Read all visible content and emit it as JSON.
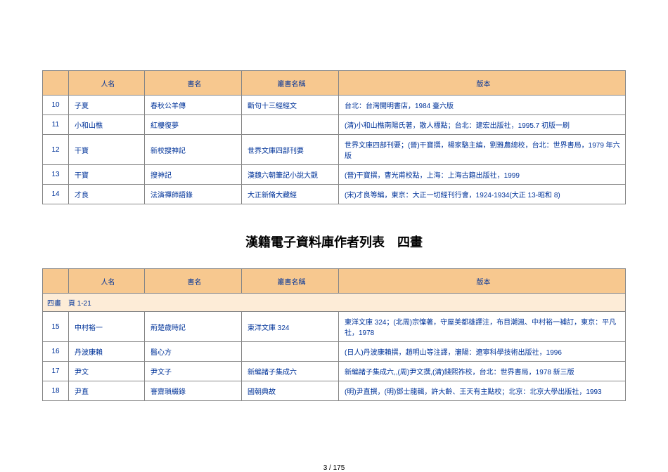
{
  "headers": {
    "num": "",
    "author": "人名",
    "title": "書名",
    "series": "叢書名稱",
    "edition": "版本"
  },
  "table1": {
    "rows": [
      {
        "n": "10",
        "a": "子夏",
        "t": "春秋公羊傳",
        "s": "斷句十三經經文",
        "e": "台北：台灣開明書店，1984 臺六版"
      },
      {
        "n": "11",
        "a": "小和山樵",
        "t": "紅樓復夢",
        "s": "",
        "e": "(清)小和山樵南陽氏著，散人標點；台北：建宏出版社，1995.7 初版一刷"
      },
      {
        "n": "12",
        "a": "干寶",
        "t": "新校搜神記",
        "s": "世界文庫四部刊要",
        "e": "世界文庫四部刊要；(晉)干寶撰，楊家駱主編，劉雅農總校，台北：世界書局，1979 年六版"
      },
      {
        "n": "13",
        "a": "干寶",
        "t": "搜神記",
        "s": "漢魏六朝筆記小說大觀",
        "e": "(晉)干寶撰，曹光甫校點，上海：上海古籍出版社，1999"
      },
      {
        "n": "14",
        "a": "才良",
        "t": "法演禪師語錄",
        "s": "大正新脩大藏經",
        "e": "(宋)才良等編，東京：大正一切經刊行會，1924-1934(大正 13-昭和 8)"
      }
    ]
  },
  "section_title": "漢籍電子資料庫作者列表　四畫",
  "table2": {
    "subhead": "四畫　頁 1-21",
    "rows": [
      {
        "n": "15",
        "a": "中村裕一",
        "t": "荊楚歲時記",
        "s": "東洋文庫 324",
        "e": "東洋文庫 324；(北周)宗懍著，守屋美都雄譯注，布目潮渢、中村裕一補訂，東京：平凡社，1978"
      },
      {
        "n": "16",
        "a": "丹波康賴",
        "t": "醫心方",
        "s": "",
        "e": "(日人)丹波康賴撰，趙明山等注譯，瀋陽：遼寧科學技術出版社，1996"
      },
      {
        "n": "17",
        "a": "尹文",
        "t": "尹文子",
        "s": "新編諸子集成六",
        "e": "新編諸子集成六,,(周)尹文撰,(清)錢熙祚校，台北：世界書局，1978 新三版"
      },
      {
        "n": "18",
        "a": "尹直",
        "t": "謇齋瑣綴錄",
        "s": "國朝典故",
        "e": "(明)尹直撰，(明)鄧士龍輯，許大齡、王天有主點校；北京：北京大學出版社，1993"
      }
    ]
  },
  "pagenum": "3 / 175"
}
